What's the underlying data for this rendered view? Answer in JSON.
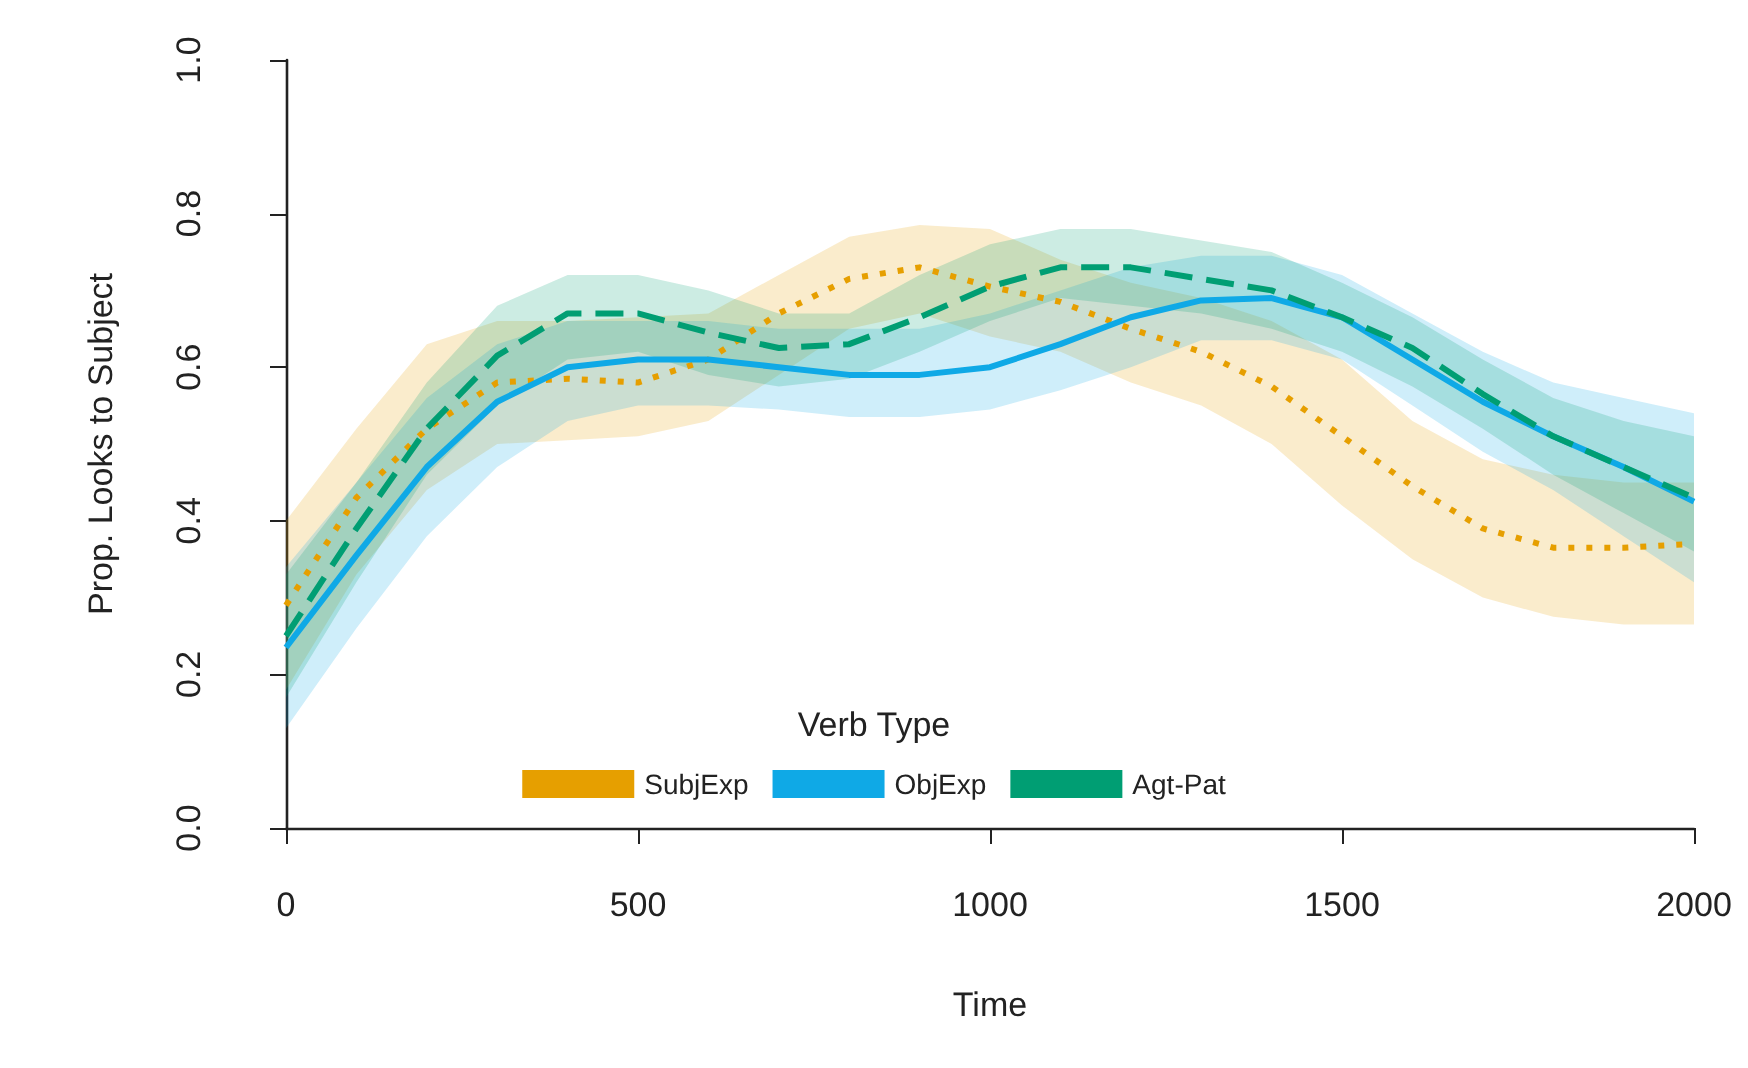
{
  "chart_data": {
    "type": "line",
    "xlabel": "Time",
    "ylabel": "Prop. Looks to Subject",
    "legend_title": "Verb Type",
    "legend": "bottom",
    "grid": false,
    "x": [
      0,
      100,
      200,
      300,
      400,
      500,
      600,
      700,
      800,
      900,
      1000,
      1100,
      1200,
      1300,
      1400,
      1500,
      1600,
      1700,
      1800,
      1900,
      2000
    ],
    "xlim": [
      0,
      2000
    ],
    "xticks": [
      0,
      500,
      1000,
      1500,
      2000
    ],
    "ylim": [
      0,
      1
    ],
    "yticks": [
      {
        "value": 0,
        "label": "0.0"
      },
      0.2,
      0.4,
      0.6,
      0.8,
      {
        "value": 1,
        "label": "1.0"
      }
    ],
    "series": [
      {
        "name": "SubjExp",
        "color": "#e69f00",
        "line_style": "dotted",
        "values": [
          0.29,
          0.43,
          0.52,
          0.58,
          0.585,
          0.58,
          0.61,
          0.67,
          0.715,
          0.73,
          0.705,
          0.685,
          0.65,
          0.62,
          0.575,
          0.51,
          0.445,
          0.39,
          0.365,
          0.365,
          0.37
        ],
        "upper": [
          0.4,
          0.52,
          0.63,
          0.66,
          0.66,
          0.665,
          0.67,
          0.72,
          0.77,
          0.785,
          0.78,
          0.74,
          0.71,
          0.69,
          0.66,
          0.61,
          0.53,
          0.48,
          0.46,
          0.45,
          0.45
        ],
        "lower": [
          0.18,
          0.33,
          0.44,
          0.5,
          0.505,
          0.51,
          0.53,
          0.59,
          0.65,
          0.67,
          0.64,
          0.62,
          0.58,
          0.55,
          0.5,
          0.42,
          0.35,
          0.3,
          0.275,
          0.265,
          0.265
        ]
      },
      {
        "name": "ObjExp",
        "color": "#0fa9e6",
        "line_style": "solid",
        "values": [
          0.235,
          0.355,
          0.47,
          0.555,
          0.6,
          0.61,
          0.61,
          0.6,
          0.59,
          0.59,
          0.6,
          0.63,
          0.665,
          0.687,
          0.69,
          0.665,
          0.61,
          0.555,
          0.51,
          0.47,
          0.425
        ],
        "upper": [
          0.34,
          0.45,
          0.56,
          0.63,
          0.66,
          0.66,
          0.66,
          0.65,
          0.65,
          0.65,
          0.67,
          0.7,
          0.73,
          0.745,
          0.745,
          0.72,
          0.67,
          0.62,
          0.58,
          0.56,
          0.54
        ],
        "lower": [
          0.13,
          0.26,
          0.38,
          0.47,
          0.53,
          0.55,
          0.55,
          0.545,
          0.535,
          0.535,
          0.545,
          0.57,
          0.6,
          0.635,
          0.635,
          0.61,
          0.55,
          0.49,
          0.44,
          0.38,
          0.32
        ]
      },
      {
        "name": "Agt-Pat",
        "color": "#009e73",
        "line_style": "dashed",
        "values": [
          0.25,
          0.39,
          0.52,
          0.615,
          0.67,
          0.67,
          0.645,
          0.625,
          0.63,
          0.665,
          0.705,
          0.73,
          0.73,
          0.715,
          0.7,
          0.665,
          0.625,
          0.565,
          0.51,
          0.47,
          0.43
        ],
        "upper": [
          0.33,
          0.45,
          0.58,
          0.68,
          0.72,
          0.72,
          0.7,
          0.67,
          0.67,
          0.72,
          0.76,
          0.78,
          0.78,
          0.765,
          0.75,
          0.71,
          0.665,
          0.61,
          0.56,
          0.53,
          0.51
        ],
        "lower": [
          0.17,
          0.32,
          0.46,
          0.55,
          0.61,
          0.62,
          0.59,
          0.575,
          0.585,
          0.62,
          0.66,
          0.69,
          0.68,
          0.67,
          0.65,
          0.62,
          0.575,
          0.52,
          0.46,
          0.41,
          0.36
        ]
      }
    ]
  }
}
